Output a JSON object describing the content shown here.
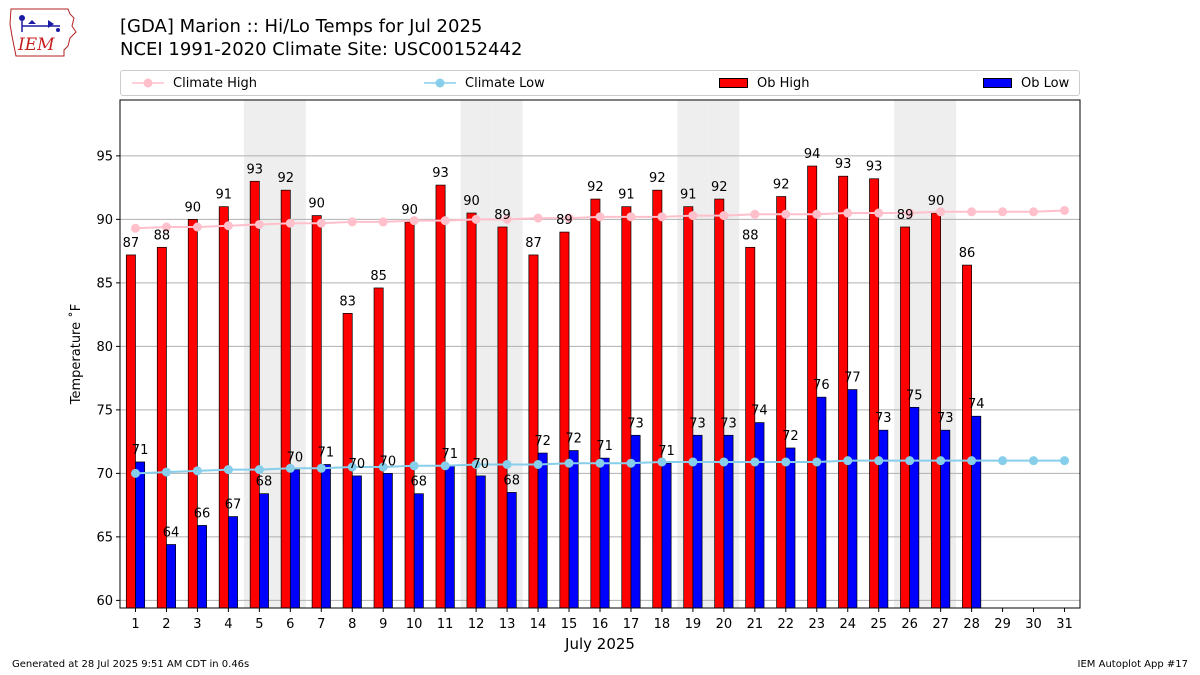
{
  "logo": {
    "text": "IEM"
  },
  "header": {
    "title": "[GDA] Marion :: Hi/Lo Temps for Jul 2025",
    "subtitle": "NCEI 1991-2020 Climate Site: USC00152442"
  },
  "colors": {
    "ob_high": "#ff0000",
    "ob_low": "#0000ff",
    "climate_high": "#ffc0cb",
    "climate_low": "#87ceeb",
    "weekend_shade": "#eeeeee",
    "grid": "#b0b0b0"
  },
  "chart_data": {
    "type": "bar",
    "categories": [
      "1",
      "2",
      "3",
      "4",
      "5",
      "6",
      "7",
      "8",
      "9",
      "10",
      "11",
      "12",
      "13",
      "14",
      "15",
      "16",
      "17",
      "18",
      "19",
      "20",
      "21",
      "22",
      "23",
      "24",
      "25",
      "26",
      "27",
      "28",
      "29",
      "30",
      "31"
    ],
    "series": [
      {
        "name": "Ob High",
        "type": "bar",
        "color": "#ff0000",
        "values": [
          87,
          88,
          90,
          91,
          93,
          92,
          90,
          83,
          85,
          90,
          93,
          90,
          89,
          87,
          89,
          92,
          91,
          92,
          91,
          92,
          88,
          92,
          94,
          93,
          93,
          89,
          90,
          86,
          null,
          null,
          null
        ],
        "bar_values": [
          87.2,
          87.8,
          90.0,
          91.0,
          93.0,
          92.3,
          90.3,
          82.6,
          84.6,
          89.8,
          92.7,
          90.5,
          89.4,
          87.2,
          89.0,
          91.6,
          91.0,
          92.3,
          91.0,
          91.6,
          87.8,
          91.8,
          94.2,
          93.4,
          93.2,
          89.4,
          90.5,
          86.4,
          null,
          null,
          null
        ]
      },
      {
        "name": "Ob Low",
        "type": "bar",
        "color": "#0000ff",
        "values": [
          71,
          64,
          66,
          67,
          68,
          70,
          71,
          70,
          70,
          68,
          71,
          70,
          68,
          72,
          72,
          71,
          73,
          71,
          73,
          73,
          74,
          72,
          76,
          77,
          73,
          75,
          73,
          74,
          null,
          null,
          null
        ],
        "bar_values": [
          70.9,
          64.4,
          65.9,
          66.6,
          68.4,
          70.3,
          70.7,
          69.8,
          70.0,
          68.4,
          70.6,
          69.8,
          68.5,
          71.6,
          71.8,
          71.2,
          73.0,
          70.8,
          73.0,
          73.0,
          74.0,
          72.0,
          76.0,
          76.6,
          73.4,
          75.2,
          73.4,
          74.5,
          null,
          null,
          null
        ]
      },
      {
        "name": "Climate High",
        "type": "line",
        "color": "#ffc0cb",
        "values": [
          89.3,
          89.4,
          89.4,
          89.5,
          89.6,
          89.7,
          89.7,
          89.8,
          89.8,
          89.9,
          89.9,
          90.0,
          90.0,
          90.1,
          90.1,
          90.2,
          90.2,
          90.2,
          90.3,
          90.3,
          90.4,
          90.4,
          90.4,
          90.5,
          90.5,
          90.5,
          90.6,
          90.6,
          90.6,
          90.6,
          90.7
        ]
      },
      {
        "name": "Climate Low",
        "type": "line",
        "color": "#87ceeb",
        "values": [
          70.0,
          70.1,
          70.2,
          70.3,
          70.3,
          70.4,
          70.4,
          70.5,
          70.5,
          70.6,
          70.6,
          70.7,
          70.7,
          70.7,
          70.8,
          70.8,
          70.8,
          70.9,
          70.9,
          70.9,
          70.9,
          70.9,
          70.9,
          71.0,
          71.0,
          71.0,
          71.0,
          71.0,
          71.0,
          71.0,
          71.0
        ]
      }
    ],
    "weekend_days": [
      5,
      6,
      12,
      13,
      19,
      20,
      26,
      27
    ],
    "xlabel": "July 2025",
    "ylabel": "Temperature ˚F",
    "ylim": [
      59.4,
      99.4
    ],
    "yticks": [
      60,
      65,
      70,
      75,
      80,
      85,
      90,
      95
    ],
    "grid": "y",
    "legend": "top, above plot, single row"
  },
  "footer": {
    "left": "Generated at 28 Jul 2025 9:51 AM CDT in 0.46s",
    "right": "IEM Autoplot App #17"
  }
}
